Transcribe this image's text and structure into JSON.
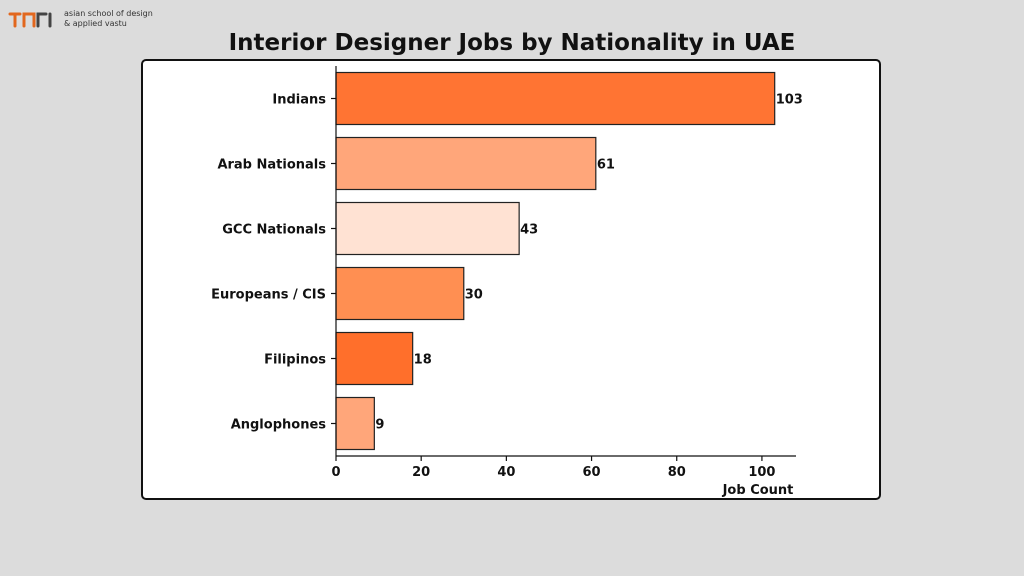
{
  "logo": {
    "line1": "asian school of design",
    "line2": "& applied vastu",
    "accent_color": "#e2671e"
  },
  "chart_data": {
    "type": "bar",
    "orientation": "horizontal",
    "title": "Interior Designer Jobs by Nationality in UAE",
    "xlabel": "Job Count",
    "ylabel": "",
    "categories": [
      "Indians",
      "Arab Nationals",
      "GCC Nationals",
      "Europeans / CIS",
      "Filipinos",
      "Anglophones"
    ],
    "values": [
      103,
      61,
      43,
      30,
      18,
      9
    ],
    "data_labels": [
      "103",
      "61",
      "43",
      "30",
      "18",
      "9"
    ],
    "bar_colors": [
      "#ff7433",
      "#ffa67a",
      "#ffe2d3",
      "#ff8f52",
      "#ff6f2b",
      "#ffa67a"
    ],
    "xlim": [
      0,
      108
    ],
    "xticks": [
      0,
      20,
      40,
      60,
      80,
      100
    ],
    "xtick_labels": [
      "0",
      "20",
      "40",
      "60",
      "80",
      "100"
    ],
    "grid": false,
    "legend": "none"
  }
}
